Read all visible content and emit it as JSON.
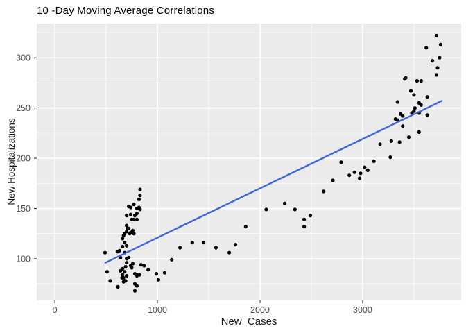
{
  "chart_data": {
    "type": "scatter",
    "title": "10 -Day Moving Average Correlations",
    "xlabel": "New  Cases",
    "ylabel": "New Hospitalizations",
    "x_ticks": [
      0,
      1000,
      2000,
      3000
    ],
    "x_minor_ticks": [
      500,
      1500,
      2500,
      3500
    ],
    "y_ticks": [
      100,
      150,
      200,
      250,
      300
    ],
    "y_minor_ticks": [
      75,
      125,
      175,
      225,
      275,
      325
    ],
    "xlim": [
      -176,
      3960
    ],
    "ylim": [
      58.5,
      334
    ],
    "grid": "major and minor white gridlines on gray panel",
    "legend_position": "none",
    "colors": {
      "panel": "#EBEBEB",
      "grid": "#FFFFFF",
      "points": "#000000",
      "smooth_line": "#3A66DE",
      "axis_text": "#4D4D4D",
      "tick_marks": "#333333",
      "title_text": "#000000"
    },
    "smooth_line": {
      "type": "linear",
      "x": [
        493,
        3770
      ],
      "y": [
        96,
        257
      ]
    },
    "points": [
      [
        490,
        106
      ],
      [
        510,
        87
      ],
      [
        540,
        78
      ],
      [
        610,
        107
      ],
      [
        615,
        72
      ],
      [
        630,
        108
      ],
      [
        640,
        88
      ],
      [
        640,
        101
      ],
      [
        655,
        81
      ],
      [
        660,
        84
      ],
      [
        660,
        90
      ],
      [
        660,
        112
      ],
      [
        660,
        120
      ],
      [
        670,
        77
      ],
      [
        670,
        81
      ],
      [
        670,
        123
      ],
      [
        680,
        87
      ],
      [
        680,
        106
      ],
      [
        680,
        116
      ],
      [
        690,
        78
      ],
      [
        690,
        92
      ],
      [
        700,
        83
      ],
      [
        700,
        96
      ],
      [
        700,
        100
      ],
      [
        700,
        113
      ],
      [
        710,
        130
      ],
      [
        720,
        101
      ],
      [
        740,
        93
      ],
      [
        750,
        91
      ],
      [
        760,
        95
      ],
      [
        780,
        68
      ],
      [
        780,
        75
      ],
      [
        780,
        85
      ],
      [
        800,
        73
      ],
      [
        800,
        83
      ],
      [
        800,
        84
      ],
      [
        825,
        84
      ],
      [
        840,
        94
      ],
      [
        870,
        93
      ],
      [
        680,
        125
      ],
      [
        700,
        127
      ],
      [
        700,
        133
      ],
      [
        720,
        130
      ],
      [
        730,
        125
      ],
      [
        740,
        126
      ],
      [
        760,
        128
      ],
      [
        770,
        125
      ],
      [
        700,
        143
      ],
      [
        740,
        144
      ],
      [
        750,
        139
      ],
      [
        770,
        139
      ],
      [
        780,
        143
      ],
      [
        800,
        139
      ],
      [
        800,
        145
      ],
      [
        720,
        152
      ],
      [
        740,
        151
      ],
      [
        770,
        154
      ],
      [
        800,
        150
      ],
      [
        820,
        151
      ],
      [
        820,
        159
      ],
      [
        830,
        149
      ],
      [
        830,
        163
      ],
      [
        830,
        169
      ],
      [
        910,
        89
      ],
      [
        990,
        85
      ],
      [
        1010,
        79
      ],
      [
        1070,
        86
      ],
      [
        1140,
        99
      ],
      [
        1220,
        111
      ],
      [
        1340,
        116
      ],
      [
        1450,
        116
      ],
      [
        1570,
        111
      ],
      [
        1700,
        106
      ],
      [
        1760,
        114
      ],
      [
        1860,
        132
      ],
      [
        2060,
        149
      ],
      [
        2240,
        155
      ],
      [
        2340,
        149
      ],
      [
        2430,
        132
      ],
      [
        2430,
        139
      ],
      [
        2490,
        143
      ],
      [
        2620,
        167
      ],
      [
        2710,
        178
      ],
      [
        2790,
        196
      ],
      [
        2870,
        183
      ],
      [
        2920,
        186
      ],
      [
        2970,
        180
      ],
      [
        2980,
        185
      ],
      [
        3020,
        191
      ],
      [
        3050,
        188
      ],
      [
        3110,
        197
      ],
      [
        3170,
        214
      ],
      [
        3270,
        201
      ],
      [
        3280,
        217
      ],
      [
        3360,
        216
      ],
      [
        3390,
        232
      ],
      [
        3450,
        221
      ],
      [
        3550,
        226
      ],
      [
        3320,
        239
      ],
      [
        3340,
        238
      ],
      [
        3370,
        244
      ],
      [
        3390,
        242
      ],
      [
        3480,
        245
      ],
      [
        3500,
        247
      ],
      [
        3510,
        250
      ],
      [
        3550,
        245
      ],
      [
        3630,
        243
      ],
      [
        3340,
        256
      ],
      [
        3550,
        255
      ],
      [
        3570,
        253
      ],
      [
        3630,
        261
      ],
      [
        3410,
        279
      ],
      [
        3420,
        280
      ],
      [
        3470,
        267
      ],
      [
        3500,
        263
      ],
      [
        3530,
        277
      ],
      [
        3570,
        277
      ],
      [
        3620,
        310
      ],
      [
        3680,
        297
      ],
      [
        3720,
        283
      ],
      [
        3720,
        322
      ],
      [
        3730,
        290
      ],
      [
        3750,
        300
      ],
      [
        3760,
        313
      ]
    ]
  }
}
